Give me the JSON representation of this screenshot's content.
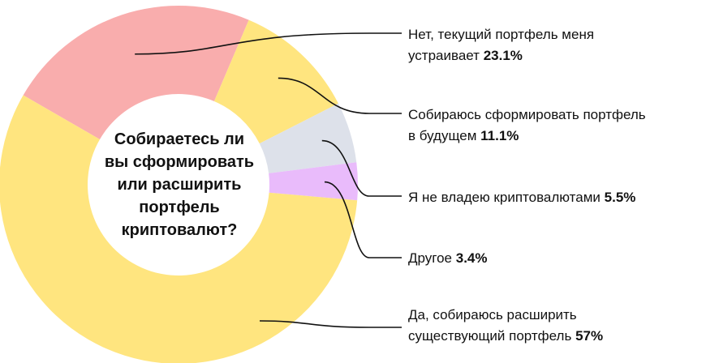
{
  "chart_data": {
    "type": "pie",
    "donut": true,
    "title": "Собираетесь ли вы сформировать или расширить портфель криптовалют?",
    "title_lines": [
      "Собираетесь ли",
      "вы сформировать",
      "или расширить",
      "портфель",
      "криптовалют?"
    ],
    "grid": false,
    "legend_placement": "right",
    "slices": [
      {
        "label": "Нет, текущий портфель меня устраивает",
        "label_lines": [
          "Нет, текущий портфель меня",
          "устраивает"
        ],
        "value": 23.1,
        "value_text": "23.1%",
        "color": "#F9ADAD"
      },
      {
        "label": "Собираюсь сформировать портфель в будущем",
        "label_lines": [
          "Собираюсь сформировать портфель",
          "в будущем"
        ],
        "value": 11.1,
        "value_text": "11.1%",
        "color": "#FFE57F"
      },
      {
        "label": "Я не владею криптовалютами",
        "label_lines": [
          "Я не владею криптовалютами"
        ],
        "value": 5.5,
        "value_text": "5.5%",
        "color": "#DDE1EA"
      },
      {
        "label": "Другое",
        "label_lines": [
          "Другое"
        ],
        "value": 3.4,
        "value_text": "3.4%",
        "color": "#E9BBFB"
      },
      {
        "label": "Да, собираюсь расширить существующий портфель",
        "label_lines": [
          "Да, собираюсь расширить",
          "существующий портфель"
        ],
        "value": 57,
        "value_text": "57%",
        "color": "#FFE57F"
      }
    ]
  }
}
